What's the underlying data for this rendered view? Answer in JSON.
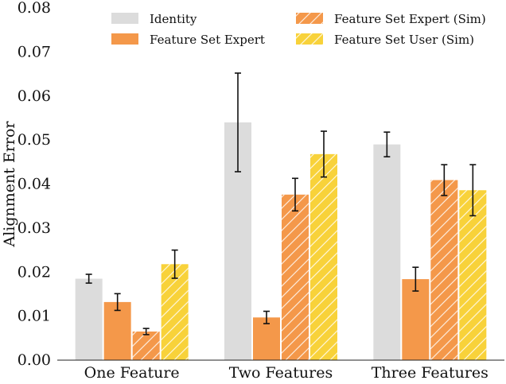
{
  "chart_data": {
    "type": "bar",
    "title": "",
    "xlabel": "",
    "ylabel": "Alignment Error",
    "ylim": [
      0,
      0.08
    ],
    "yticks": [
      "0.00",
      "0.01",
      "0.02",
      "0.03",
      "0.04",
      "0.05",
      "0.06",
      "0.07",
      "0.08"
    ],
    "categories": [
      "One Feature",
      "Two Features",
      "Three Features"
    ],
    "legend_position": "top",
    "grid": false,
    "series": [
      {
        "name": "Identity",
        "color": "#dcdcdc",
        "hatch": false,
        "values": [
          0.0185,
          0.054,
          0.049
        ],
        "err": [
          0.001,
          0.0112,
          0.0028
        ]
      },
      {
        "name": "Feature Set Expert",
        "color": "#f4984a",
        "hatch": false,
        "values": [
          0.0132,
          0.0097,
          0.0184
        ],
        "err": [
          0.0019,
          0.0014,
          0.0027
        ]
      },
      {
        "name": "Feature Set Expert (Sim)",
        "color": "#f4984a",
        "hatch": true,
        "values": [
          0.0065,
          0.0376,
          0.0409
        ],
        "err": [
          0.0007,
          0.0037,
          0.0035
        ]
      },
      {
        "name": "Feature Set User (Sim)",
        "color": "#f8d23a",
        "hatch": true,
        "values": [
          0.0218,
          0.0468,
          0.0386
        ],
        "err": [
          0.0032,
          0.0052,
          0.0058
        ]
      }
    ]
  }
}
